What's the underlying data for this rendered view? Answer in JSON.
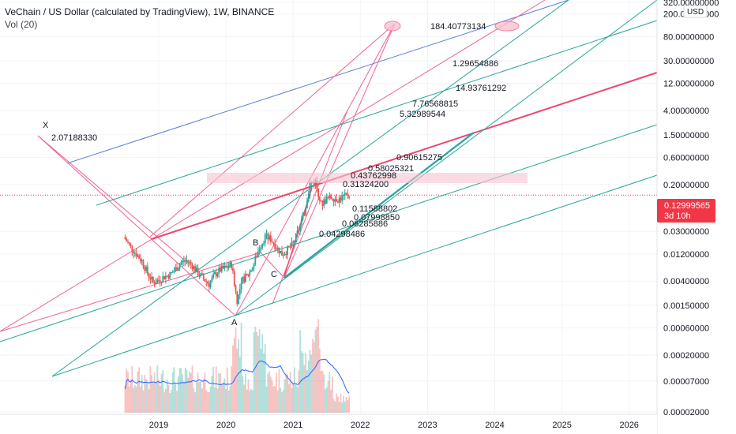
{
  "header": {
    "title": "VeChain / US Dollar (calculated by TradingView), 1W, BINANCE",
    "volume_label": "Vol (20)"
  },
  "price_axis": {
    "currency_button": "USD",
    "ticks": [
      "320.00000000",
      "200.00000000",
      "80.00000000",
      "30.00000000",
      "12.00000000",
      "4.00000000",
      "1.50000000",
      "0.60000000",
      "0.20000000",
      "0.03000000",
      "0.01200000",
      "0.00400000",
      "0.00150000",
      "0.00060000",
      "0.00020000",
      "0.00007000",
      "0.00002000"
    ],
    "last_price_label": "0.12999565",
    "countdown_label": "3d 10h",
    "last_price_color": "#f23645"
  },
  "time_axis": {
    "ticks": [
      "2019",
      "2020",
      "2021",
      "2022",
      "2023",
      "2024",
      "2025",
      "2026"
    ]
  },
  "annotations": {
    "point_labels": [
      "X",
      "A",
      "B",
      "C"
    ],
    "fib_levels": [
      "2.07188330",
      "184.40773134",
      "1.29654886",
      "14.93761292",
      "7.76568815",
      "5.32989544",
      "0.90615275",
      "0.58025321",
      "0.43762998",
      "0.31324200",
      "0.11588802",
      "0.07998850",
      "0.06285886",
      "0.04298486"
    ]
  },
  "colors": {
    "candle_up": "#26a69a",
    "candle_down": "#ef5350",
    "pink_line": "#f06292",
    "red_line": "#ef476f",
    "teal_line": "#26a69a",
    "blue_line": "#5b7fd6",
    "volume_ma": "#2962ff"
  },
  "chart_data": {
    "type": "candlestick",
    "title": "VeChain / US Dollar (calculated by TradingView), 1W, BINANCE",
    "scale": "log",
    "x": [
      "2018-07",
      "2018-08",
      "2018-09",
      "2018-10",
      "2018-11",
      "2018-12",
      "2019-01",
      "2019-02",
      "2019-03",
      "2019-04",
      "2019-05",
      "2019-06",
      "2019-07",
      "2019-08",
      "2019-09",
      "2019-10",
      "2019-11",
      "2019-12",
      "2020-01",
      "2020-02",
      "2020-03",
      "2020-04",
      "2020-05",
      "2020-06",
      "2020-07",
      "2020-08",
      "2020-09",
      "2020-10",
      "2020-11",
      "2020-12",
      "2021-01",
      "2021-02",
      "2021-03",
      "2021-04",
      "2021-05",
      "2021-06",
      "2021-07",
      "2021-08",
      "2021-09",
      "2021-10",
      "2021-11"
    ],
    "close": [
      0.022,
      0.016,
      0.012,
      0.009,
      0.0055,
      0.0038,
      0.0042,
      0.0048,
      0.0052,
      0.0065,
      0.0085,
      0.0092,
      0.0075,
      0.0055,
      0.0044,
      0.0035,
      0.0052,
      0.0063,
      0.0068,
      0.0078,
      0.0018,
      0.0042,
      0.0052,
      0.0082,
      0.016,
      0.024,
      0.022,
      0.016,
      0.012,
      0.014,
      0.018,
      0.032,
      0.065,
      0.21,
      0.22,
      0.09,
      0.11,
      0.12,
      0.11,
      0.12,
      0.135
    ],
    "last_price": 0.12999565,
    "ylim": [
      2e-05,
      320
    ],
    "x_ticks": [
      "2019",
      "2020",
      "2021",
      "2022",
      "2023",
      "2024",
      "2025",
      "2026"
    ],
    "series": [
      {
        "name": "Vol (20)",
        "type": "volume"
      }
    ],
    "annotations": [
      "X",
      "A",
      "B",
      "C"
    ]
  }
}
